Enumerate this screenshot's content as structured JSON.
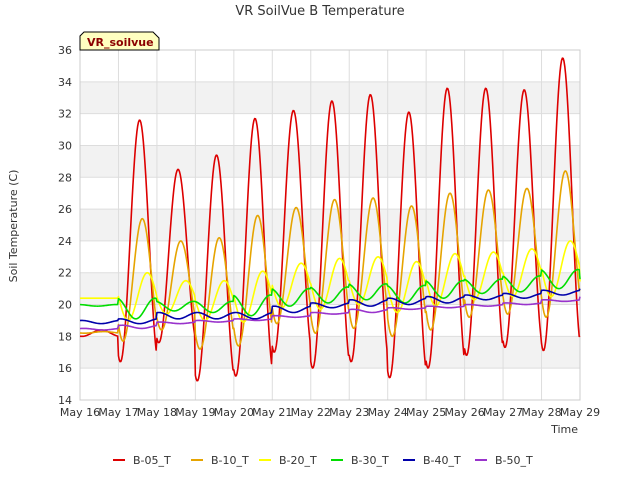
{
  "chart_data": {
    "type": "line",
    "title": "VR SoilVue B Temperature",
    "xlabel": "Time",
    "ylabel": "Soil Temperature (C)",
    "badge": "VR_soilvue",
    "ylim": [
      14,
      36
    ],
    "yticks": [
      14,
      16,
      18,
      20,
      22,
      24,
      26,
      28,
      30,
      32,
      34,
      36
    ],
    "xlim": [
      16,
      29
    ],
    "xtick_values": [
      16,
      17,
      18,
      19,
      20,
      21,
      22,
      23,
      24,
      25,
      26,
      27,
      28,
      29
    ],
    "xtick_labels": [
      "May 16",
      "May 17",
      "May 18",
      "May 19",
      "May 20",
      "May 21",
      "May 22",
      "May 23",
      "May 24",
      "May 25",
      "May 26",
      "May 27",
      "May 28",
      "May 29"
    ],
    "grid": true,
    "legend_position": "bottom",
    "series": [
      {
        "name": "B-05_T",
        "color": "#dd0000",
        "peak_day_fraction": 0.55,
        "daily_max": [
          18.4,
          31.6,
          28.5,
          29.4,
          31.7,
          32.2,
          32.8,
          33.2,
          32.1,
          33.6,
          33.6,
          33.5,
          35.5,
          35.5
        ],
        "daily_min": [
          18.0,
          16.4,
          17.6,
          15.2,
          15.5,
          17.0,
          16.0,
          16.4,
          15.4,
          16.0,
          16.8,
          17.3,
          17.1,
          17.6
        ]
      },
      {
        "name": "B-10_T",
        "color": "#e6a400",
        "peak_day_fraction": 0.62,
        "daily_max": [
          18.3,
          25.4,
          24.0,
          24.2,
          25.6,
          26.1,
          26.6,
          26.7,
          26.2,
          27.0,
          27.2,
          27.3,
          28.4,
          27.6
        ],
        "daily_min": [
          18.2,
          17.7,
          18.4,
          17.2,
          17.4,
          18.8,
          18.2,
          18.5,
          18.0,
          18.4,
          19.2,
          19.4,
          19.2,
          19.9
        ]
      },
      {
        "name": "B-20_T",
        "color": "#ffff00",
        "peak_day_fraction": 0.75,
        "daily_max": [
          20.4,
          22.0,
          21.5,
          21.5,
          22.1,
          22.6,
          22.9,
          23.0,
          22.7,
          23.2,
          23.3,
          23.5,
          24.0,
          22.7
        ],
        "daily_min": [
          20.4,
          19.0,
          19.4,
          19.0,
          18.9,
          19.8,
          19.7,
          20.0,
          19.5,
          19.9,
          20.3,
          20.5,
          20.5,
          20.2
        ]
      },
      {
        "name": "B-30_T",
        "color": "#00dd00",
        "peak_day_fraction": 0.95,
        "daily_max": [
          20.0,
          20.4,
          20.2,
          20.2,
          20.6,
          21.0,
          21.1,
          21.3,
          21.2,
          21.5,
          21.6,
          21.8,
          22.2,
          21.6
        ],
        "daily_min": [
          19.9,
          19.1,
          19.6,
          19.5,
          19.3,
          19.9,
          20.1,
          20.3,
          20.1,
          20.4,
          20.7,
          20.8,
          21.0,
          21.3
        ]
      },
      {
        "name": "B-40_T",
        "color": "#0000aa",
        "peak_day_fraction": 0.05,
        "daily_max": [
          19.0,
          19.1,
          19.5,
          19.5,
          19.5,
          19.9,
          20.1,
          20.3,
          20.4,
          20.5,
          20.6,
          20.7,
          20.9,
          21.0
        ],
        "daily_min": [
          18.8,
          18.8,
          19.1,
          19.1,
          19.1,
          19.5,
          19.8,
          19.9,
          20.0,
          20.1,
          20.3,
          20.4,
          20.6,
          20.8
        ]
      },
      {
        "name": "B-50_T",
        "color": "#9933cc",
        "peak_day_fraction": 0.1,
        "daily_max": [
          18.5,
          18.7,
          18.9,
          19.0,
          19.1,
          19.3,
          19.5,
          19.7,
          19.8,
          19.9,
          20.0,
          20.1,
          20.3,
          20.5
        ],
        "daily_min": [
          18.4,
          18.5,
          18.8,
          18.9,
          19.0,
          19.2,
          19.4,
          19.5,
          19.7,
          19.8,
          19.9,
          20.0,
          20.2,
          20.4
        ]
      }
    ]
  }
}
